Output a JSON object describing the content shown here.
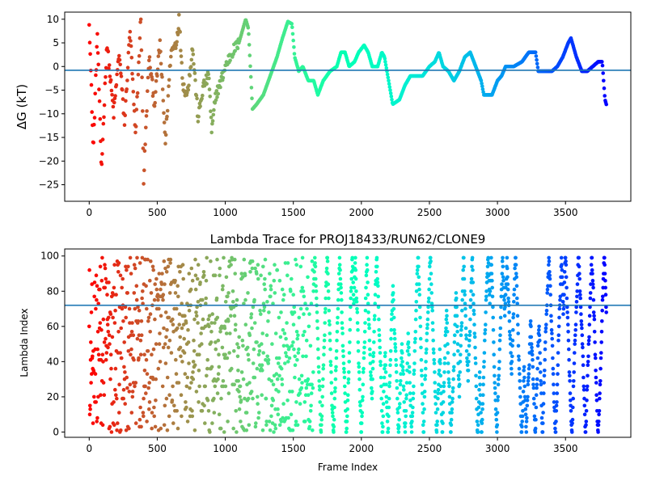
{
  "chart_data": [
    {
      "type": "scatter",
      "title": "",
      "xlabel": "",
      "ylabel": "ΔG (kT)",
      "xlim": [
        -180,
        3980
      ],
      "ylim": [
        -28.5,
        11.5
      ],
      "xticks": [
        0,
        500,
        1000,
        1500,
        2000,
        2500,
        3000,
        3500
      ],
      "yticks": [
        10,
        5,
        0,
        -5,
        -10,
        -15,
        -20,
        -25
      ],
      "grid": false,
      "reference_line": {
        "y": -0.8,
        "color": "#1f77b4"
      },
      "colormap": "rainbow (red at frame 0 to violet at end)",
      "x_max_frame": 3800,
      "trace_anchors": {
        "x": [
          0,
          30,
          60,
          90,
          130,
          180,
          220,
          260,
          300,
          340,
          380,
          400,
          440,
          480,
          520,
          560,
          600,
          640,
          660,
          690,
          720,
          760,
          800,
          840,
          880,
          900,
          930,
          960,
          1000,
          1050,
          1100,
          1150,
          1170,
          1200,
          1230,
          1280,
          1330,
          1380,
          1420,
          1460,
          1490,
          1510,
          1540,
          1570,
          1610,
          1650,
          1680,
          1720,
          1770,
          1820,
          1850,
          1880,
          1910,
          1950,
          1980,
          2020,
          2050,
          2080,
          2120,
          2150,
          2170,
          2230,
          2280,
          2320,
          2360,
          2400,
          2450,
          2500,
          2540,
          2570,
          2600,
          2640,
          2680,
          2720,
          2760,
          2800,
          2840,
          2880,
          2900,
          2960,
          3000,
          3030,
          3060,
          3120,
          3180,
          3230,
          3280,
          3300,
          3350,
          3400,
          3440,
          3480,
          3520,
          3540,
          3580,
          3620,
          3660,
          3700,
          3740,
          3770,
          3790,
          3800
        ],
        "y": [
          10,
          -18,
          7,
          -22,
          5,
          -10,
          3,
          -12,
          8,
          -15,
          11,
          -24,
          2,
          -8,
          5,
          -16,
          3,
          5,
          10,
          -4,
          -6,
          4,
          -11,
          -4,
          -2,
          -14,
          -6,
          -4,
          0,
          3,
          5,
          10,
          8,
          -9,
          -8,
          -6,
          -2,
          2,
          6,
          9.5,
          9,
          2,
          -1,
          0,
          -3,
          -3,
          -6,
          -3,
          -1,
          0,
          3,
          3,
          0,
          1,
          3,
          4.5,
          3,
          0,
          0,
          3,
          2,
          -8,
          -7,
          -4,
          -2,
          -2,
          -2,
          0,
          1,
          3,
          0,
          -1,
          -3,
          -1,
          2,
          3,
          0,
          -3,
          -6,
          -6,
          -3,
          -2,
          0,
          0,
          1,
          3,
          3,
          -1,
          -1,
          -1,
          0,
          2,
          5,
          6,
          2,
          -1,
          -1,
          0,
          1,
          1,
          -7,
          -8
        ]
      }
    },
    {
      "type": "scatter",
      "title": "Lambda Trace for PROJ18433/RUN62/CLONE9",
      "xlabel": "Frame Index",
      "ylabel": "Lambda Index",
      "xlim": [
        -180,
        3980
      ],
      "ylim": [
        -3,
        104
      ],
      "xticks": [
        0,
        500,
        1000,
        1500,
        2000,
        2500,
        3000,
        3500
      ],
      "yticks": [
        0,
        20,
        40,
        60,
        80,
        100
      ],
      "grid": false,
      "reference_line": {
        "y": 72,
        "color": "#1f77b4"
      },
      "colormap": "rainbow (red at frame 0 to violet at end)",
      "x_max_frame": 3800,
      "value_range": [
        0,
        99
      ]
    }
  ]
}
